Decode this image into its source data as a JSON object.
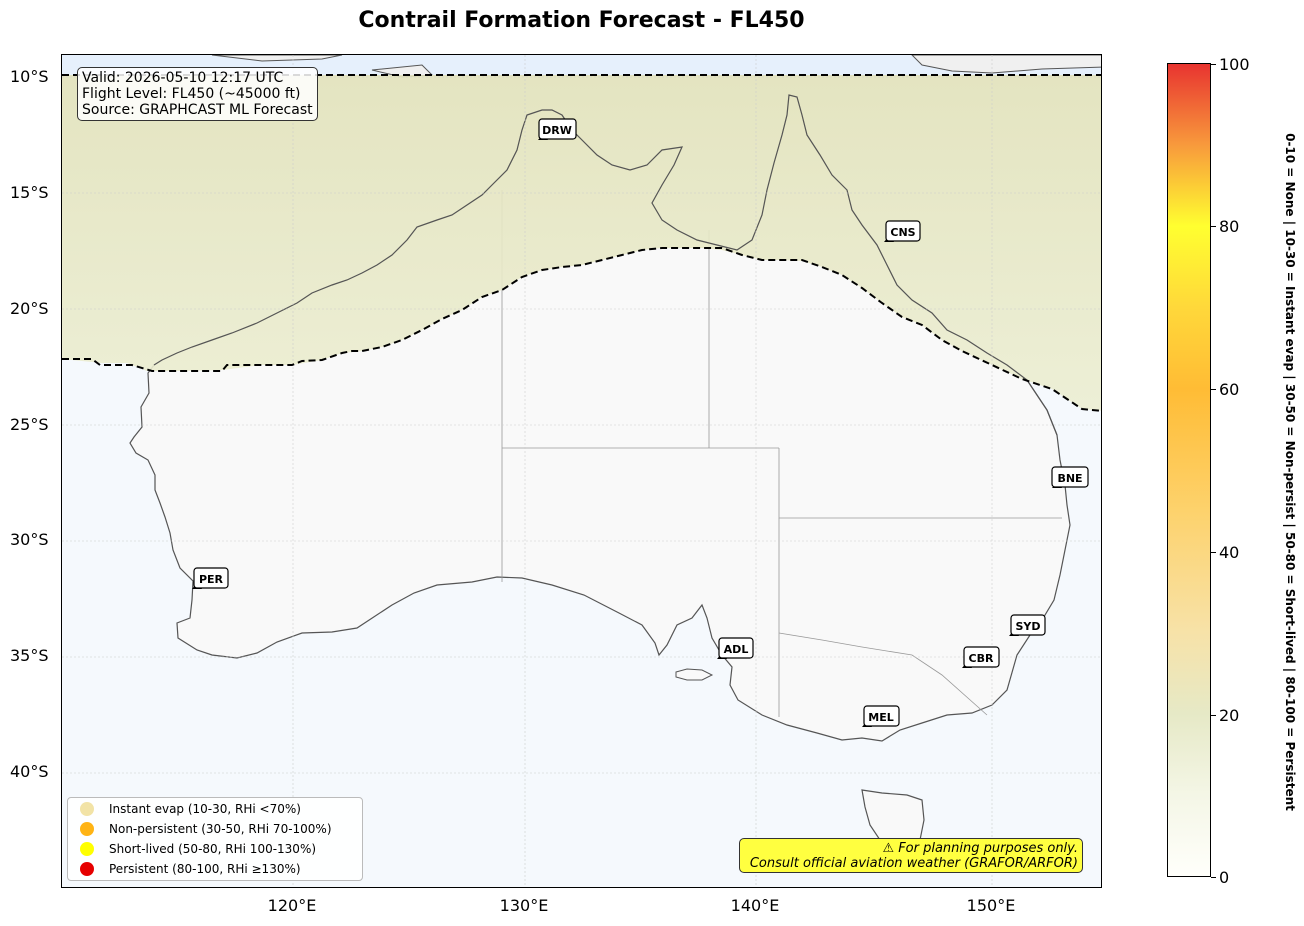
{
  "title": "Contrail Formation Forecast - FL450",
  "info_box": {
    "valid": "Valid: 2026-05-10 12:17 UTC",
    "flight_level": "Flight Level: FL450 (~45000 ft)",
    "source": "Source: GRAPHCAST ML Forecast"
  },
  "lat_ticks": [
    "10°S",
    "15°S",
    "20°S",
    "25°S",
    "30°S",
    "35°S",
    "40°S"
  ],
  "lon_ticks": [
    "120°E",
    "130°E",
    "140°E",
    "150°E"
  ],
  "airports": [
    {
      "code": "DRW"
    },
    {
      "code": "CNS"
    },
    {
      "code": "BNE"
    },
    {
      "code": "PER"
    },
    {
      "code": "SYD"
    },
    {
      "code": "ADL"
    },
    {
      "code": "CBR"
    },
    {
      "code": "MEL"
    }
  ],
  "legend": [
    {
      "label": "Instant evap (10-30, RHi <70%)",
      "color": "#f2e3a6"
    },
    {
      "label": "Non-persistent (30-50, RHi 70-100%)",
      "color": "#ffb414"
    },
    {
      "label": "Short-lived (50-80, RHi 100-130%)",
      "color": "#ffff00"
    },
    {
      "label": "Persistent (80-100, RHi ≥130%)",
      "color": "#e60000"
    }
  ],
  "disclaimer": {
    "line1": "⚠ For planning purposes only.",
    "line2": "Consult official aviation weather (GRAFOR/ARFOR)"
  },
  "colorbar": {
    "ticks": [
      "0",
      "20",
      "40",
      "60",
      "80",
      "100"
    ],
    "label": "0-10 = None  |  10-30 = Instant evap  |  30-50 = Non-persist  |  50-80 = Short-lived  |  80-100 = Persistent"
  },
  "colors": {
    "north_zone": "#e6e6c2",
    "ocean_south": "#f5f9fd",
    "ocean_north_band": "#e6f0fc",
    "land": "#f9f9f9",
    "coastline": "#555555"
  }
}
